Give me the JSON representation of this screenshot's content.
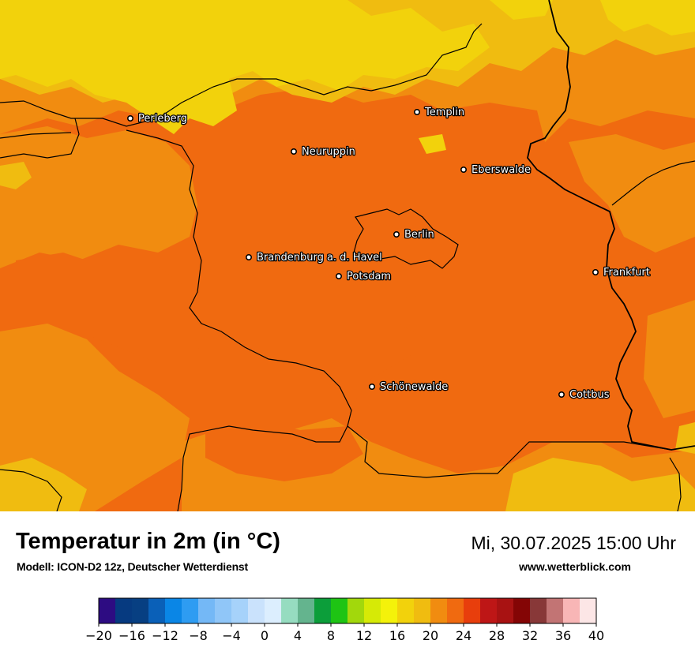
{
  "map": {
    "cities": [
      {
        "name": "Perleberg"
      },
      {
        "name": "Templin"
      },
      {
        "name": "Neuruppin"
      },
      {
        "name": "Eberswalde"
      },
      {
        "name": "Berlin"
      },
      {
        "name": "Brandenburg a. d. Havel"
      },
      {
        "name": "Potsdam"
      },
      {
        "name": "Frankfurt"
      },
      {
        "name": "Schönewalde"
      },
      {
        "name": "Cottbus"
      }
    ],
    "colors": {
      "t16_18": "#f2d20c",
      "t18_20": "#f0bc10",
      "t20_22": "#f18c10",
      "t22_24": "#f06a10",
      "border": "#000000"
    }
  },
  "footer": {
    "title": "Temperatur in 2m (in °C)",
    "model": "Modell: ICON-D2 12z, Deutscher Wetterdienst",
    "datetime": "Mi, 30.07.2025 15:00 Uhr",
    "website": "www.wetterblick.com"
  },
  "legend": {
    "unit": "°C",
    "min": -20,
    "max": 40,
    "step": 2,
    "tick_labels": [
      "−20",
      "−16",
      "−12",
      "−8",
      "−4",
      "0",
      "4",
      "8",
      "12",
      "16",
      "20",
      "24",
      "28",
      "32",
      "36",
      "40"
    ],
    "colors": [
      "#2d0c82",
      "#063a80",
      "#073f82",
      "#0a60b8",
      "#0a86e6",
      "#2e9cf2",
      "#74b8f6",
      "#90c6f8",
      "#a6d2fa",
      "#cae2fc",
      "#dceefe",
      "#96dcc0",
      "#64b48e",
      "#0c9e3a",
      "#1ec414",
      "#a2d80c",
      "#d6ea06",
      "#f4f20a",
      "#f2d20c",
      "#f0bc10",
      "#f18c10",
      "#f06a10",
      "#e83e0c",
      "#be1616",
      "#a81212",
      "#840505",
      "#883838",
      "#c27474",
      "#f8b6b6",
      "#fce6e6"
    ]
  }
}
